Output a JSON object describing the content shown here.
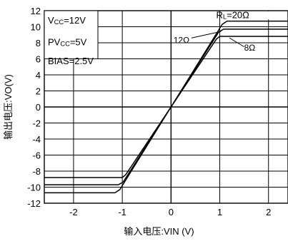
{
  "chart_data": {
    "type": "line",
    "xlabel": "输入电压:VIN (V)",
    "ylabel": "输出电压:VO(V)",
    "xlim": [
      -2.6,
      2.4
    ],
    "ylim": [
      -12,
      12
    ],
    "x_ticks": [
      -2,
      -1,
      0,
      1,
      2
    ],
    "y_ticks": [
      12,
      10,
      8,
      6,
      4,
      2,
      0,
      -2,
      -4,
      -6,
      -8,
      -10,
      -12
    ],
    "grid": true,
    "conditions": {
      "line1": {
        "main": "V",
        "sub": "CC",
        "tail": "=12V"
      },
      "line2": {
        "main": "PV",
        "sub": "CC",
        "tail": "=5V"
      },
      "line3": {
        "main": "BIAS=2.5V"
      }
    },
    "series": [
      {
        "name": "RL=20Ω",
        "label": {
          "main": "R",
          "sub": "L",
          "tail": "=20Ω"
        },
        "x": [
          -2.6,
          -1.15,
          -1.05,
          1.05,
          1.15,
          2.4
        ],
        "y": [
          -10.7,
          -10.7,
          -10.3,
          10.3,
          10.7,
          10.7
        ]
      },
      {
        "name": "12Ω",
        "label": {
          "main": "12Ω"
        },
        "x": [
          -2.6,
          -1.08,
          -0.98,
          0.98,
          1.08,
          2.4
        ],
        "y": [
          -9.7,
          -9.7,
          -9.35,
          9.35,
          9.7,
          9.7
        ]
      },
      {
        "name": "8Ω",
        "label": {
          "main": "8Ω"
        },
        "x": [
          -2.6,
          -1.0,
          -0.93,
          0.93,
          1.0,
          2.4
        ],
        "y": [
          -8.8,
          -8.8,
          -8.45,
          8.45,
          8.8,
          8.8
        ]
      }
    ]
  }
}
